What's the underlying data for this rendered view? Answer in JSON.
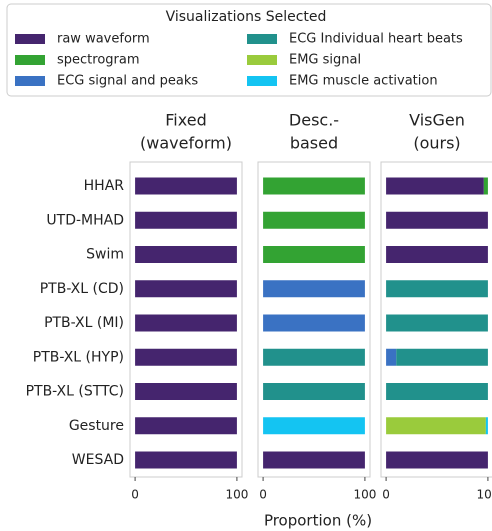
{
  "chart_data": {
    "type": "bar",
    "orientation": "horizontal",
    "stacked": true,
    "legend_title": "Visualizations Selected",
    "xlabel": "Proportion (%)",
    "categories": [
      "HHAR",
      "UTD-MHAD",
      "Swim",
      "PTB-XL (CD)",
      "PTB-XL (MI)",
      "PTB-XL (HYP)",
      "PTB-XL (STTC)",
      "Gesture",
      "WESAD"
    ],
    "panels": [
      {
        "title": [
          "Fixed",
          "(waveform)"
        ]
      },
      {
        "title": [
          "Desc.-",
          "based"
        ]
      },
      {
        "title": [
          "VisGen",
          "(ours)"
        ]
      }
    ],
    "series": [
      {
        "name": "raw waveform",
        "color": "#45256e",
        "values": [
          [
            100,
            100,
            100,
            100,
            100,
            100,
            100,
            100,
            100
          ],
          [
            0,
            0,
            0,
            0,
            0,
            0,
            0,
            0,
            100
          ],
          [
            96,
            100,
            100,
            0,
            0,
            0,
            0,
            0,
            100
          ]
        ]
      },
      {
        "name": "spectrogram",
        "color": "#33a333",
        "values": [
          [
            0,
            0,
            0,
            0,
            0,
            0,
            0,
            0,
            0
          ],
          [
            100,
            100,
            100,
            0,
            0,
            0,
            0,
            0,
            0
          ],
          [
            4,
            0,
            0,
            0,
            0,
            0,
            0,
            0,
            0
          ]
        ]
      },
      {
        "name": "ECG signal and peaks",
        "color": "#3a72c3",
        "values": [
          [
            0,
            0,
            0,
            0,
            0,
            0,
            0,
            0,
            0
          ],
          [
            0,
            0,
            0,
            100,
            100,
            0,
            0,
            0,
            0
          ],
          [
            0,
            0,
            0,
            0,
            0,
            10,
            0,
            0,
            0
          ]
        ]
      },
      {
        "name": "ECG Individual heart beats",
        "color": "#21918c",
        "values": [
          [
            0,
            0,
            0,
            0,
            0,
            0,
            0,
            0,
            0
          ],
          [
            0,
            0,
            0,
            0,
            0,
            100,
            100,
            0,
            0
          ],
          [
            0,
            0,
            0,
            100,
            100,
            90,
            100,
            0,
            0
          ]
        ]
      },
      {
        "name": "EMG signal",
        "color": "#9acb3c",
        "values": [
          [
            0,
            0,
            0,
            0,
            0,
            0,
            0,
            0,
            0
          ],
          [
            0,
            0,
            0,
            0,
            0,
            0,
            0,
            0,
            0
          ],
          [
            0,
            0,
            0,
            0,
            0,
            0,
            0,
            98,
            0
          ]
        ]
      },
      {
        "name": "EMG muscle activation",
        "color": "#14c4f2",
        "values": [
          [
            0,
            0,
            0,
            0,
            0,
            0,
            0,
            0,
            0
          ],
          [
            0,
            0,
            0,
            0,
            0,
            0,
            0,
            100,
            0
          ],
          [
            0,
            0,
            0,
            0,
            0,
            0,
            0,
            2,
            0
          ]
        ]
      }
    ],
    "xlim": [
      -5,
      105
    ],
    "xticks": [
      0,
      100
    ]
  }
}
